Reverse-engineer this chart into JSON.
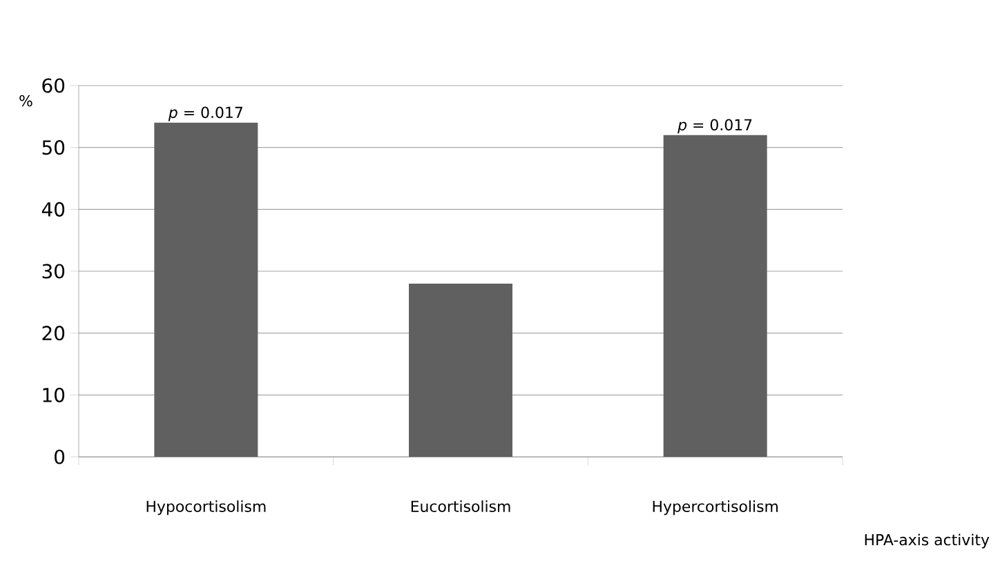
{
  "chart_data": {
    "type": "bar",
    "categories": [
      "Hypocortisolism",
      "Eucortisolism",
      "Hypercortisolism"
    ],
    "values": [
      54,
      28,
      52
    ],
    "color": "#606060",
    "ylabel": "%",
    "xlabel": "HPA-axis activity",
    "ylim": [
      0,
      60
    ],
    "yticks": [
      0,
      10,
      20,
      30,
      40,
      50,
      60
    ],
    "grid": "y",
    "annotations": [
      {
        "text": "*p* = 0.017",
        "x": "Hypocortisolism",
        "y": 54
      },
      {
        "text": "*p* = 0.017",
        "x": "Hypercortisolism",
        "y": 52
      }
    ]
  }
}
